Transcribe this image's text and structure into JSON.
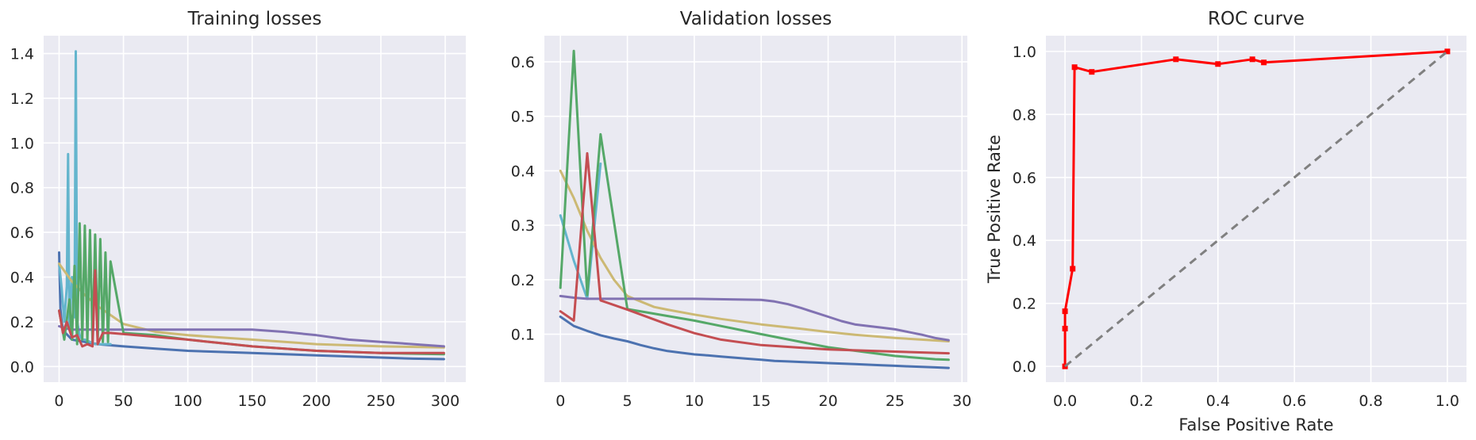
{
  "chart_data": [
    {
      "type": "line",
      "title": "Training losses",
      "xlabel": "",
      "ylabel": "",
      "xlim": [
        -12,
        316
      ],
      "ylim": [
        -0.07,
        1.48
      ],
      "xticks": [
        0,
        50,
        100,
        150,
        200,
        250,
        300
      ],
      "yticks": [
        0.0,
        0.2,
        0.4,
        0.6,
        0.8,
        1.0,
        1.2,
        1.4
      ],
      "ytick_labels": [
        "0.0",
        "0.2",
        "0.4",
        "0.6",
        "0.8",
        "1.0",
        "1.2",
        "1.4"
      ],
      "grid": true,
      "series": [
        {
          "color": "#4c72b0",
          "x": [
            0,
            1,
            2,
            3,
            5,
            10,
            20,
            30,
            50,
            75,
            100,
            125,
            150,
            175,
            200,
            225,
            250,
            275,
            299
          ],
          "y": [
            0.51,
            0.26,
            0.2,
            0.17,
            0.15,
            0.12,
            0.11,
            0.1,
            0.09,
            0.08,
            0.07,
            0.065,
            0.06,
            0.055,
            0.05,
            0.045,
            0.04,
            0.035,
            0.033
          ]
        },
        {
          "color": "#64b5cd",
          "x": [
            0,
            2,
            4,
            6,
            7,
            8,
            10,
            12,
            13,
            14,
            16,
            18,
            20,
            24,
            28,
            32,
            36,
            40
          ],
          "y": [
            0.46,
            0.35,
            0.2,
            0.36,
            0.95,
            0.18,
            0.4,
            0.22,
            1.41,
            0.2,
            0.14,
            0.12,
            0.12,
            0.11,
            0.1,
            0.1,
            0.1,
            0.1
          ]
        },
        {
          "color": "#ccb974",
          "x": [
            0,
            5,
            10,
            20,
            30,
            40,
            50,
            75,
            100,
            150,
            200,
            250,
            299
          ],
          "y": [
            0.46,
            0.42,
            0.38,
            0.32,
            0.27,
            0.23,
            0.19,
            0.155,
            0.14,
            0.12,
            0.1,
            0.09,
            0.085
          ]
        },
        {
          "color": "#8172b2",
          "x": [
            0,
            5,
            10,
            20,
            50,
            100,
            150,
            175,
            200,
            225,
            250,
            275,
            299
          ],
          "y": [
            0.18,
            0.17,
            0.165,
            0.165,
            0.165,
            0.165,
            0.165,
            0.155,
            0.14,
            0.12,
            0.11,
            0.1,
            0.09
          ]
        },
        {
          "color": "#55a868",
          "x": [
            0,
            4,
            8,
            10,
            12,
            14,
            16,
            18,
            20,
            22,
            24,
            26,
            28,
            30,
            32,
            34,
            36,
            38,
            40,
            50,
            75,
            100,
            150,
            200,
            250,
            299
          ],
          "y": [
            0.25,
            0.12,
            0.3,
            0.12,
            0.45,
            0.1,
            0.64,
            0.12,
            0.63,
            0.11,
            0.61,
            0.11,
            0.59,
            0.11,
            0.57,
            0.11,
            0.51,
            0.11,
            0.47,
            0.15,
            0.14,
            0.12,
            0.09,
            0.07,
            0.06,
            0.055
          ]
        },
        {
          "color": "#c44e52",
          "x": [
            0,
            3,
            6,
            10,
            14,
            18,
            22,
            26,
            28,
            30,
            34,
            40,
            60,
            100,
            150,
            200,
            250,
            299
          ],
          "y": [
            0.25,
            0.15,
            0.2,
            0.13,
            0.14,
            0.09,
            0.1,
            0.09,
            0.43,
            0.1,
            0.15,
            0.15,
            0.14,
            0.12,
            0.09,
            0.07,
            0.06,
            0.06
          ]
        }
      ]
    },
    {
      "type": "line",
      "title": "Validation losses",
      "xlabel": "",
      "ylabel": "",
      "xlim": [
        -1.2,
        30.4
      ],
      "ylim": [
        0.012,
        0.648
      ],
      "xticks": [
        0,
        5,
        10,
        15,
        20,
        25,
        30
      ],
      "yticks": [
        0.1,
        0.2,
        0.3,
        0.4,
        0.5,
        0.6
      ],
      "ytick_labels": [
        "0.1",
        "0.2",
        "0.3",
        "0.4",
        "0.5",
        "0.6"
      ],
      "grid": true,
      "series": [
        {
          "color": "#4c72b0",
          "x": [
            0,
            1,
            2,
            3,
            4,
            5,
            6,
            7,
            8,
            9,
            10,
            11,
            12,
            13,
            14,
            15,
            16,
            17,
            18,
            19,
            20,
            21,
            22,
            23,
            24,
            25,
            26,
            27,
            28,
            29
          ],
          "y": [
            0.132,
            0.115,
            0.106,
            0.098,
            0.092,
            0.087,
            0.08,
            0.074,
            0.069,
            0.066,
            0.063,
            0.061,
            0.059,
            0.057,
            0.055,
            0.053,
            0.051,
            0.05,
            0.049,
            0.048,
            0.047,
            0.046,
            0.045,
            0.044,
            0.043,
            0.042,
            0.041,
            0.04,
            0.039,
            0.038
          ]
        },
        {
          "color": "#64b5cd",
          "x": [
            0,
            1,
            2,
            3
          ],
          "y": [
            0.318,
            0.235,
            0.165,
            0.413
          ]
        },
        {
          "color": "#ccb974",
          "x": [
            0,
            1,
            2,
            3,
            4,
            5,
            6,
            7,
            8,
            10,
            12,
            15,
            18,
            20,
            22,
            25,
            27,
            29
          ],
          "y": [
            0.4,
            0.35,
            0.29,
            0.24,
            0.2,
            0.17,
            0.16,
            0.15,
            0.145,
            0.136,
            0.128,
            0.118,
            0.11,
            0.104,
            0.099,
            0.093,
            0.09,
            0.087
          ]
        },
        {
          "color": "#8172b2",
          "x": [
            0,
            1,
            2,
            3,
            5,
            10,
            15,
            16,
            17,
            18,
            19,
            20,
            21,
            22,
            23,
            24,
            25,
            26,
            27,
            28,
            29
          ],
          "y": [
            0.17,
            0.167,
            0.165,
            0.165,
            0.165,
            0.165,
            0.163,
            0.16,
            0.155,
            0.148,
            0.14,
            0.132,
            0.124,
            0.118,
            0.115,
            0.112,
            0.109,
            0.104,
            0.099,
            0.093,
            0.089
          ]
        },
        {
          "color": "#55a868",
          "x": [
            0,
            1,
            2,
            3,
            5,
            10,
            15,
            20,
            25,
            28,
            29
          ],
          "y": [
            0.185,
            0.62,
            0.172,
            0.467,
            0.146,
            0.125,
            0.1,
            0.076,
            0.06,
            0.054,
            0.053
          ]
        },
        {
          "color": "#c44e52",
          "x": [
            0,
            1,
            2,
            3,
            5,
            8,
            10,
            12,
            15,
            20,
            25,
            29
          ],
          "y": [
            0.142,
            0.125,
            0.432,
            0.162,
            0.145,
            0.118,
            0.102,
            0.09,
            0.08,
            0.072,
            0.068,
            0.065
          ]
        }
      ]
    },
    {
      "type": "line",
      "title": "ROC curve",
      "xlabel": "False Positive Rate",
      "ylabel": "True Positive Rate",
      "xlim": [
        -0.05,
        1.05
      ],
      "ylim": [
        -0.05,
        1.05
      ],
      "xticks": [
        0.0,
        0.2,
        0.4,
        0.6,
        0.8,
        1.0
      ],
      "yticks": [
        0.0,
        0.2,
        0.4,
        0.6,
        0.8,
        1.0
      ],
      "xtick_labels": [
        "0.0",
        "0.2",
        "0.4",
        "0.6",
        "0.8",
        "1.0"
      ],
      "ytick_labels": [
        "0.0",
        "0.2",
        "0.4",
        "0.6",
        "0.8",
        "1.0"
      ],
      "grid": true,
      "series": [
        {
          "color": "#ff0000",
          "markers": true,
          "x": [
            0.0,
            0.0,
            0.0,
            0.02,
            0.025,
            0.07,
            0.29,
            0.4,
            0.49,
            0.52,
            1.0
          ],
          "y": [
            0.0,
            0.12,
            0.175,
            0.31,
            0.95,
            0.935,
            0.975,
            0.96,
            0.975,
            0.965,
            1.0
          ]
        },
        {
          "color": "#808080",
          "dashed": true,
          "x": [
            0.0,
            1.0
          ],
          "y": [
            0.0,
            1.0
          ]
        }
      ]
    }
  ]
}
